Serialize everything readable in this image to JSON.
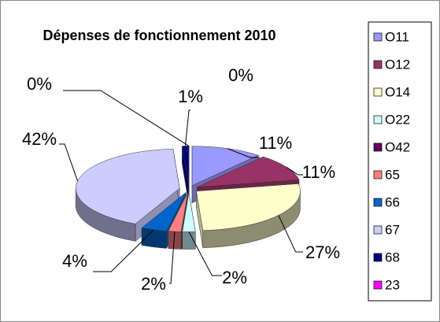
{
  "chart_data": {
    "type": "pie3d",
    "title": "Dépenses de fonctionnement 2010",
    "categories": [
      "O11",
      "O12",
      "O14",
      "O22",
      "O42",
      "65",
      "66",
      "67",
      "68",
      "23"
    ],
    "values": [
      11,
      11,
      27,
      2,
      0,
      2,
      4,
      42,
      1,
      0
    ],
    "value_labels": [
      "11%",
      "11%",
      "27%",
      "2%",
      "0%",
      "2%",
      "4%",
      "42%",
      "1%",
      "0%"
    ],
    "colors": [
      "#9999ff",
      "#993366",
      "#ffffcc",
      "#ccffff",
      "#660066",
      "#ff8080",
      "#0066cc",
      "#ccccff",
      "#000080",
      "#ff00ff"
    ],
    "legend": "right"
  }
}
